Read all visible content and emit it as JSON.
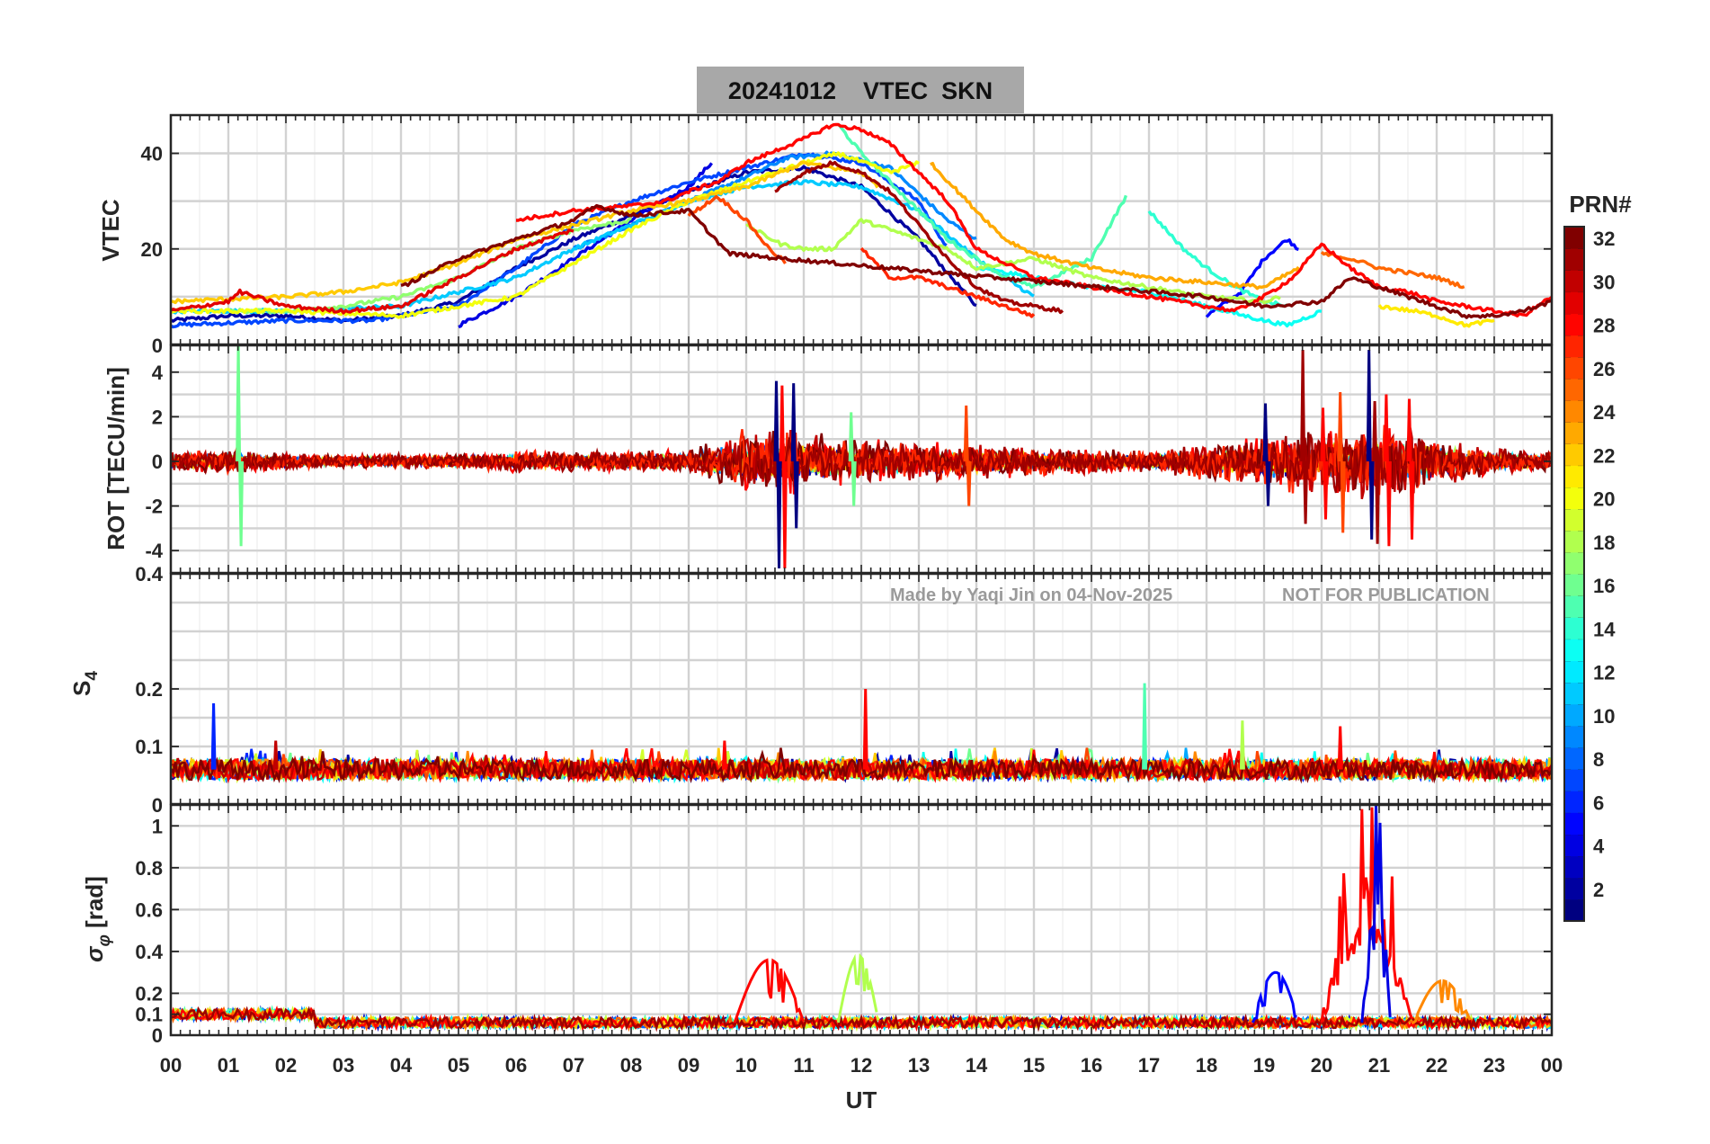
{
  "chart_data": {
    "type": "line",
    "title": "20241012    VTEC  SKN",
    "watermark": {
      "made_by": "Made by Yaqi Jin on 04-Nov-2025",
      "notice": "NOT FOR PUBLICATION"
    },
    "x_axis": {
      "label": "UT",
      "range_hours": [
        0,
        24
      ],
      "tick_labels": [
        "00",
        "01",
        "02",
        "03",
        "04",
        "05",
        "06",
        "07",
        "08",
        "09",
        "10",
        "11",
        "12",
        "13",
        "14",
        "15",
        "16",
        "17",
        "18",
        "19",
        "20",
        "21",
        "22",
        "23",
        "00"
      ]
    },
    "grid": true,
    "colormap": "jet",
    "colorbar": {
      "title": "PRN#",
      "range": [
        1,
        32
      ],
      "tick_labels": [
        "2",
        "4",
        "6",
        "8",
        "10",
        "12",
        "14",
        "16",
        "18",
        "20",
        "22",
        "24",
        "26",
        "28",
        "30",
        "32"
      ],
      "placement": "right"
    },
    "panels": [
      {
        "id": "vtec",
        "ylabel": "VTEC",
        "ylim": [
          0,
          48
        ],
        "tick_labels": [
          "20",
          "40"
        ],
        "top_tick_label": "",
        "bottom_tick_label": "",
        "series": [
          {
            "prn": 2,
            "x": [
              0.0,
              1.0,
              2.0,
              3.0,
              4.0,
              5.0,
              6.0,
              7.0,
              8.0,
              9.0,
              10.0,
              11.0,
              12.0,
              13.0,
              14.0
            ],
            "y": [
              5,
              6,
              6,
              5,
              6,
              9,
              16,
              22,
              27,
              32,
              36,
              37,
              33,
              22,
              8
            ]
          },
          {
            "prn": 4,
            "x": [
              5.0,
              6.0,
              7.0,
              8.0,
              9.0,
              9.4
            ],
            "y": [
              4,
              10,
              18,
              26,
              33,
              38
            ]
          },
          {
            "prn": 5,
            "x": [
              18.0,
              18.6,
              19.0,
              19.4,
              19.6
            ],
            "y": [
              6,
              11,
              18,
              22,
              20
            ]
          },
          {
            "prn": 7,
            "x": [
              0.0,
              2.0,
              3.5,
              5.0,
              6.0,
              7.0,
              8.0,
              9.0,
              10.0,
              11.0,
              12.0,
              13.0,
              13.5
            ],
            "y": [
              4,
              5,
              5,
              8,
              16,
              25,
              30,
              34,
              37,
              40,
              38,
              30,
              20
            ]
          },
          {
            "prn": 9,
            "x": [
              7.0,
              8.0,
              9.0,
              10.0,
              10.7,
              11.5,
              12.5,
              13.5,
              14.0
            ],
            "y": [
              20,
              25,
              30,
              35,
              39,
              40,
              37,
              26,
              22
            ]
          },
          {
            "prn": 11,
            "x": [
              0.0,
              2.0,
              4.0,
              6.0,
              7.0,
              8.0,
              9.0,
              10.0,
              11.0,
              12.0,
              13.0,
              14.0,
              15.0
            ],
            "y": [
              7,
              7,
              8,
              14,
              20,
              25,
              30,
              33,
              34,
              33,
              28,
              18,
              10
            ]
          },
          {
            "prn": 13,
            "x": [
              14.0,
              15.0,
              16.0,
              17.0,
              18.0,
              19.0,
              19.4,
              20.0
            ],
            "y": [
              16,
              14,
              12,
              11,
              8,
              5,
              4,
              7
            ]
          },
          {
            "prn": 14,
            "x": [
              17.0,
              17.6,
              18.0,
              18.5,
              19.0,
              19.4
            ],
            "y": [
              28,
              20,
              16,
              12,
              9,
              8
            ]
          },
          {
            "prn": 15,
            "x": [
              11.6,
              12.0,
              12.5,
              13.0,
              13.5,
              14.0,
              14.5,
              15.0,
              16.0,
              16.6
            ],
            "y": [
              46,
              40,
              34,
              28,
              22,
              18,
              14,
              12,
              18,
              31
            ]
          },
          {
            "prn": 17,
            "x": [
              1.0,
              2.0,
              3.0,
              4.0,
              5.0,
              6.0,
              7.0,
              8.0
            ],
            "y": [
              7,
              7,
              8,
              10,
              14,
              20,
              24,
              26
            ]
          },
          {
            "prn": 18,
            "x": [
              10.0,
              10.6,
              11.0,
              11.5,
              12.0,
              12.5,
              13.0,
              13.5,
              14.0,
              15.0,
              16.0,
              17.0,
              18.0,
              19.0,
              19.3
            ],
            "y": [
              25,
              21,
              20,
              20,
              26,
              24,
              22,
              20,
              16,
              18,
              14,
              12,
              10,
              9,
              10
            ]
          },
          {
            "prn": 20,
            "x": [
              0.0,
              2.0,
              4.0,
              6.0,
              8.0,
              9.0,
              10.0,
              11.0,
              11.6,
              12.5,
              13.0
            ],
            "y": [
              7,
              7,
              6,
              10,
              24,
              30,
              34,
              38,
              40,
              36,
              38
            ]
          },
          {
            "prn": 21,
            "x": [
              21.0,
              21.6,
              22.0,
              22.5,
              23.0
            ],
            "y": [
              8,
              7,
              6,
              4,
              5
            ]
          },
          {
            "prn": 22,
            "x": [
              0.0,
              2.0,
              3.0,
              4.0,
              5.0,
              6.0,
              7.0,
              8.0,
              9.0,
              10.0,
              11.0,
              12.0,
              12.3
            ],
            "y": [
              9,
              10,
              11,
              13,
              17,
              22,
              25,
              28,
              30,
              33,
              38,
              36,
              33
            ]
          },
          {
            "prn": 23,
            "x": [
              13.2,
              13.6,
              14.0,
              14.5,
              15.0,
              16.0,
              17.0,
              18.0,
              19.0,
              19.6
            ],
            "y": [
              38,
              33,
              28,
              22,
              19,
              16,
              14,
              13,
              12,
              16
            ]
          },
          {
            "prn": 25,
            "x": [
              20.0,
              20.5,
              21.0,
              21.5,
              22.0,
              22.5
            ],
            "y": [
              19,
              18,
              16,
              15,
              14,
              12
            ]
          },
          {
            "prn": 26,
            "x": [
              9.0,
              9.5,
              10.0,
              10.4,
              10.7
            ],
            "y": [
              27,
              31,
              26,
              20,
              17
            ]
          },
          {
            "prn": 27,
            "x": [
              12.0,
              12.5,
              13.0,
              14.0,
              15.0
            ],
            "y": [
              20,
              14,
              14,
              10,
              6
            ]
          },
          {
            "prn": 28,
            "x": [
              6.0,
              7.0,
              8.0,
              8.6,
              9.0,
              9.5,
              10.0,
              11.0,
              11.5,
              12.0,
              12.5,
              13.0,
              13.5,
              14.0,
              15.0,
              16.0,
              17.0,
              18.0,
              18.5,
              19.0,
              19.5,
              20.0,
              20.5,
              21.0,
              21.5,
              22.0,
              22.5,
              23.0,
              23.5,
              24.0
            ],
            "y": [
              26,
              28,
              29,
              30,
              32,
              34,
              38,
              43,
              46,
              45,
              42,
              36,
              30,
              20,
              14,
              12,
              10,
              8,
              7,
              10,
              14,
              21,
              16,
              12,
              11,
              9,
              8,
              7,
              6,
              10
            ]
          },
          {
            "prn": 29,
            "x": [
              0.0,
              1.0,
              1.2,
              2.0,
              3.0,
              4.0,
              5.0,
              6.0,
              7.0
            ],
            "y": [
              7,
              9,
              11,
              8,
              7,
              8,
              14,
              20,
              24
            ]
          },
          {
            "prn": 31,
            "x": [
              10.5,
              11.0,
              11.5,
              12.0,
              12.5,
              13.0,
              13.5,
              14.0,
              14.5,
              15.0,
              15.5
            ],
            "y": [
              32,
              36,
              38,
              36,
              32,
              25,
              18,
              12,
              9,
              8,
              7
            ]
          },
          {
            "prn": 32,
            "x": [
              4.0,
              5.0,
              6.0,
              7.0,
              7.4,
              8.0,
              9.0,
              9.7,
              18.0,
              19.0,
              20.0,
              20.5,
              21.0,
              21.5,
              22.0,
              22.5,
              23.0,
              23.5,
              24.0
            ],
            "y": [
              12,
              18,
              22,
              26,
              29,
              27,
              28,
              19,
              10,
              8,
              9,
              14,
              12,
              10,
              8,
              6,
              6,
              7,
              9
            ]
          }
        ]
      },
      {
        "id": "rot",
        "ylabel": "ROT [TECU/min]",
        "ylim": [
          -5,
          5.2
        ],
        "tick_labels": [
          "-4",
          "-2",
          "0",
          "2",
          "4"
        ],
        "top_tick_label": "0",
        "bottom_tick_label": "",
        "series": [
          {
            "prn": 1,
            "spikes": [
              {
                "x": 10.5,
                "lo": -4.8,
                "hi": 3.6
              },
              {
                "x": 10.8,
                "lo": -3.0,
                "hi": 3.5
              },
              {
                "x": 20.8,
                "lo": -3.5,
                "hi": 5.0
              },
              {
                "x": 19.0,
                "lo": -2.0,
                "hi": 2.6
              }
            ]
          },
          {
            "prn": 16,
            "spikes": [
              {
                "x": 1.15,
                "lo": -3.8,
                "hi": 5.3
              },
              {
                "x": 11.8,
                "lo": -2.0,
                "hi": 2.2
              }
            ]
          },
          {
            "prn": 26,
            "spikes": [
              {
                "x": 13.8,
                "lo": -2.0,
                "hi": 2.5
              },
              {
                "x": 20.3,
                "lo": -3.2,
                "hi": 3.1
              }
            ]
          },
          {
            "prn": 28,
            "spikes": [
              {
                "x": 10.6,
                "lo": -4.8,
                "hi": 3.4
              },
              {
                "x": 21.1,
                "lo": -3.8,
                "hi": 3.0
              },
              {
                "x": 21.5,
                "lo": -3.5,
                "hi": 2.8
              },
              {
                "x": 20.0,
                "lo": -2.6,
                "hi": 2.4
              }
            ]
          },
          {
            "prn": 31,
            "spikes": [
              {
                "x": 19.65,
                "lo": -2.8,
                "hi": 5.0
              },
              {
                "x": 20.9,
                "lo": -3.7,
                "hi": 2.7
              }
            ]
          }
        ],
        "noise_amplitude_by_hour": [
          0.5,
          0.6,
          0.4,
          0.3,
          0.35,
          0.4,
          0.5,
          0.5,
          0.5,
          0.6,
          1.6,
          1.5,
          1.0,
          1.0,
          0.9,
          0.7,
          0.6,
          0.5,
          0.9,
          1.3,
          1.8,
          1.9,
          1.3,
          0.6,
          0.5
        ]
      },
      {
        "id": "s4",
        "ylabel": "S4",
        "ylim": [
          0,
          0.4
        ],
        "tick_labels": [
          "0.1",
          "0.2"
        ],
        "top_tick_label": "0.4",
        "bottom_tick_label": "",
        "baseline": 0.06,
        "spikes": [
          {
            "prn": 6,
            "x": 0.72,
            "y": 0.175
          },
          {
            "prn": 28,
            "x": 12.05,
            "y": 0.2
          },
          {
            "prn": 15,
            "x": 16.9,
            "y": 0.21
          },
          {
            "prn": 18,
            "x": 18.6,
            "y": 0.145
          },
          {
            "prn": 28,
            "x": 20.3,
            "y": 0.135
          },
          {
            "prn": 30,
            "x": 1.8,
            "y": 0.11
          },
          {
            "prn": 28,
            "x": 9.6,
            "y": 0.11
          }
        ]
      },
      {
        "id": "sigma_phi",
        "ylabel": "σφ [rad]",
        "ylim": [
          0,
          1.1
        ],
        "tick_labels": [
          "0",
          "0.1",
          "0.2",
          "0.4",
          "0.6",
          "0.8",
          "1"
        ],
        "top_tick_label": "0",
        "bottom_tick_label": "",
        "bursts": [
          {
            "prn": 28,
            "x_range": [
              9.8,
              11.0
            ],
            "peak": 0.36
          },
          {
            "prn": 18,
            "x_range": [
              11.6,
              12.3
            ],
            "peak": 0.38
          },
          {
            "prn": 5,
            "x_range": [
              18.8,
              19.6
            ],
            "peak": 0.3
          },
          {
            "prn": 28,
            "x_range": [
              20.0,
              21.6
            ],
            "peak": 1.1
          },
          {
            "prn": 4,
            "x_range": [
              20.7,
              21.2
            ],
            "peak": 1.1
          },
          {
            "prn": 24,
            "x_range": [
              21.6,
              22.6
            ],
            "peak": 0.26
          }
        ]
      }
    ]
  }
}
